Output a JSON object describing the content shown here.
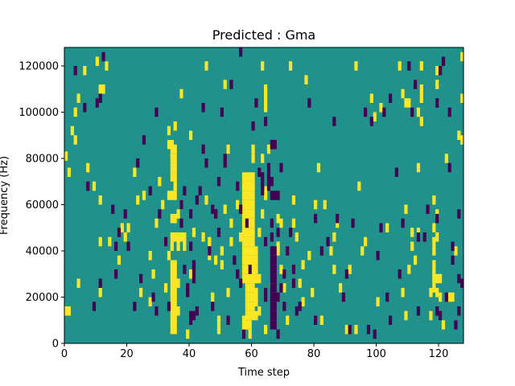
{
  "chart_data": {
    "type": "heatmap",
    "title": "Predicted : Gma",
    "xlabel": "Time step",
    "ylabel": "Frequency (Hz)",
    "xlim": [
      0,
      128
    ],
    "ylim": [
      0,
      128000
    ],
    "x_ticks": [
      0,
      20,
      40,
      60,
      80,
      100,
      120
    ],
    "y_ticks": [
      0,
      20000,
      40000,
      60000,
      80000,
      100000,
      120000
    ],
    "background_value": 0,
    "colors": {
      "background": "#21918c",
      "high": "#fde725",
      "low": "#440154"
    },
    "high_cells": [
      [
        0,
        81000
      ],
      [
        0,
        14000
      ],
      [
        1,
        14000
      ],
      [
        1,
        74000
      ],
      [
        2,
        92000
      ],
      [
        3,
        88000
      ],
      [
        3,
        100000
      ],
      [
        4,
        106000
      ],
      [
        4,
        26000
      ],
      [
        6,
        118000
      ],
      [
        7,
        76000
      ],
      [
        9,
        68000
      ],
      [
        10,
        122000
      ],
      [
        11,
        110000
      ],
      [
        11,
        62000
      ],
      [
        11,
        44000
      ],
      [
        11,
        22000
      ],
      [
        12,
        110000
      ],
      [
        13,
        120000
      ],
      [
        14,
        44000
      ],
      [
        17,
        36000
      ],
      [
        18,
        50000
      ],
      [
        19,
        46000
      ],
      [
        20,
        50000
      ],
      [
        22,
        74000
      ],
      [
        23,
        62000
      ],
      [
        24,
        22000
      ],
      [
        25,
        64000
      ],
      [
        27,
        18000
      ],
      [
        27,
        38000
      ],
      [
        28,
        30000
      ],
      [
        29,
        52000
      ],
      [
        30,
        70000
      ],
      [
        31,
        60000
      ],
      [
        32,
        24000
      ],
      [
        33,
        38000
      ],
      [
        33,
        64000
      ],
      [
        33,
        86000
      ],
      [
        33,
        92000
      ],
      [
        34,
        6000
      ],
      [
        34,
        10000
      ],
      [
        34,
        14000
      ],
      [
        34,
        18000
      ],
      [
        34,
        22000
      ],
      [
        34,
        26000
      ],
      [
        34,
        30000
      ],
      [
        34,
        34000
      ],
      [
        34,
        42000
      ],
      [
        34,
        46000
      ],
      [
        34,
        54000
      ],
      [
        34,
        64000
      ],
      [
        34,
        72000
      ],
      [
        34,
        76000
      ],
      [
        34,
        80000
      ],
      [
        34,
        82000
      ],
      [
        34,
        86000
      ],
      [
        35,
        6000
      ],
      [
        35,
        10000
      ],
      [
        35,
        14000
      ],
      [
        35,
        18000
      ],
      [
        35,
        22000
      ],
      [
        35,
        26000
      ],
      [
        35,
        30000
      ],
      [
        35,
        34000
      ],
      [
        35,
        46000
      ],
      [
        35,
        54000
      ],
      [
        35,
        64000
      ],
      [
        35,
        68000
      ],
      [
        35,
        72000
      ],
      [
        35,
        76000
      ],
      [
        35,
        80000
      ],
      [
        35,
        84000
      ],
      [
        35,
        94000
      ],
      [
        36,
        14000
      ],
      [
        36,
        26000
      ],
      [
        36,
        42000
      ],
      [
        36,
        46000
      ],
      [
        36,
        56000
      ],
      [
        37,
        46000
      ],
      [
        37,
        60000
      ],
      [
        37,
        108000
      ],
      [
        38,
        46000
      ],
      [
        38,
        42000
      ],
      [
        39,
        4000
      ],
      [
        40,
        30000
      ],
      [
        40,
        90000
      ],
      [
        41,
        48000
      ],
      [
        44,
        46000
      ],
      [
        45,
        62000
      ],
      [
        45,
        120000
      ],
      [
        46,
        44000
      ],
      [
        46,
        38000
      ],
      [
        47,
        20000
      ],
      [
        48,
        36000
      ],
      [
        49,
        10000
      ],
      [
        49,
        6000
      ],
      [
        50,
        40000
      ],
      [
        50,
        34000
      ],
      [
        51,
        58000
      ],
      [
        51,
        112000
      ],
      [
        52,
        22000
      ],
      [
        52,
        84000
      ],
      [
        53,
        52000
      ],
      [
        53,
        44000
      ],
      [
        55,
        60000
      ],
      [
        56,
        46000
      ],
      [
        57,
        72000
      ],
      [
        57,
        68000
      ],
      [
        57,
        64000
      ],
      [
        57,
        60000
      ],
      [
        57,
        56000
      ],
      [
        57,
        52000
      ],
      [
        57,
        48000
      ],
      [
        57,
        44000
      ],
      [
        57,
        40000
      ],
      [
        57,
        36000
      ],
      [
        57,
        32000
      ],
      [
        57,
        28000
      ],
      [
        57,
        10000
      ],
      [
        57,
        6000
      ],
      [
        58,
        72000
      ],
      [
        58,
        68000
      ],
      [
        58,
        64000
      ],
      [
        58,
        60000
      ],
      [
        58,
        56000
      ],
      [
        58,
        52000
      ],
      [
        58,
        48000
      ],
      [
        58,
        44000
      ],
      [
        58,
        40000
      ],
      [
        58,
        36000
      ],
      [
        58,
        32000
      ],
      [
        58,
        28000
      ],
      [
        58,
        24000
      ],
      [
        58,
        20000
      ],
      [
        58,
        16000
      ],
      [
        58,
        12000
      ],
      [
        58,
        8000
      ],
      [
        59,
        72000
      ],
      [
        59,
        68000
      ],
      [
        59,
        64000
      ],
      [
        59,
        60000
      ],
      [
        59,
        56000
      ],
      [
        59,
        52000
      ],
      [
        59,
        48000
      ],
      [
        59,
        44000
      ],
      [
        59,
        40000
      ],
      [
        59,
        36000
      ],
      [
        59,
        32000
      ],
      [
        59,
        28000
      ],
      [
        59,
        24000
      ],
      [
        59,
        20000
      ],
      [
        59,
        16000
      ],
      [
        59,
        12000
      ],
      [
        59,
        8000
      ],
      [
        59,
        4000
      ],
      [
        60,
        72000
      ],
      [
        60,
        68000
      ],
      [
        60,
        64000
      ],
      [
        60,
        60000
      ],
      [
        60,
        56000
      ],
      [
        60,
        52000
      ],
      [
        60,
        48000
      ],
      [
        60,
        44000
      ],
      [
        60,
        40000
      ],
      [
        60,
        36000
      ],
      [
        60,
        32000
      ],
      [
        60,
        28000
      ],
      [
        60,
        24000
      ],
      [
        60,
        20000
      ],
      [
        60,
        16000
      ],
      [
        60,
        12000
      ],
      [
        60,
        80000
      ],
      [
        60,
        84000
      ],
      [
        61,
        40000
      ],
      [
        61,
        36000
      ],
      [
        61,
        32000
      ],
      [
        61,
        28000
      ],
      [
        61,
        22000
      ],
      [
        61,
        18000
      ],
      [
        61,
        12000
      ],
      [
        62,
        48000
      ],
      [
        62,
        28000
      ],
      [
        62,
        14000
      ],
      [
        63,
        56000
      ],
      [
        63,
        80000
      ],
      [
        63,
        120000
      ],
      [
        64,
        110000
      ],
      [
        64,
        106000
      ],
      [
        64,
        102000
      ],
      [
        64,
        66000
      ],
      [
        64,
        64000
      ],
      [
        64,
        6000
      ],
      [
        65,
        84000
      ],
      [
        66,
        26000
      ],
      [
        68,
        54000
      ],
      [
        68,
        42000
      ],
      [
        68,
        40000
      ],
      [
        69,
        52000
      ],
      [
        69,
        32000
      ],
      [
        70,
        24000
      ],
      [
        71,
        10000
      ],
      [
        72,
        120000
      ],
      [
        73,
        62000
      ],
      [
        73,
        52000
      ],
      [
        74,
        46000
      ],
      [
        75,
        26000
      ],
      [
        76,
        34000
      ],
      [
        76,
        18000
      ],
      [
        77,
        114000
      ],
      [
        78,
        38000
      ],
      [
        79,
        22000
      ],
      [
        80,
        60000
      ],
      [
        81,
        76000
      ],
      [
        82,
        10000
      ],
      [
        83,
        60000
      ],
      [
        85,
        40000
      ],
      [
        86,
        46000
      ],
      [
        86,
        32000
      ],
      [
        87,
        52000
      ],
      [
        88,
        24000
      ],
      [
        90,
        6000
      ],
      [
        91,
        32000
      ],
      [
        93,
        6000
      ],
      [
        93,
        120000
      ],
      [
        94,
        68000
      ],
      [
        95,
        40000
      ],
      [
        96,
        44000
      ],
      [
        98,
        106000
      ],
      [
        99,
        98000
      ],
      [
        100,
        18000
      ],
      [
        101,
        102000
      ],
      [
        103,
        50000
      ],
      [
        107,
        120000
      ],
      [
        108,
        22000
      ],
      [
        108,
        108000
      ],
      [
        109,
        12000
      ],
      [
        109,
        58000
      ],
      [
        109,
        104000
      ],
      [
        110,
        32000
      ],
      [
        110,
        104000
      ],
      [
        111,
        48000
      ],
      [
        111,
        42000
      ],
      [
        112,
        36000
      ],
      [
        113,
        48000
      ],
      [
        113,
        76000
      ],
      [
        113,
        100000
      ],
      [
        114,
        110000
      ],
      [
        114,
        120000
      ],
      [
        114,
        106000
      ],
      [
        114,
        96000
      ],
      [
        117,
        22000
      ],
      [
        117,
        12000
      ],
      [
        118,
        62000
      ],
      [
        118,
        50000
      ],
      [
        118,
        44000
      ],
      [
        118,
        40000
      ],
      [
        118,
        34000
      ],
      [
        118,
        30000
      ],
      [
        118,
        28000
      ],
      [
        118,
        24000
      ],
      [
        119,
        46000
      ],
      [
        119,
        28000
      ],
      [
        119,
        22000
      ],
      [
        119,
        56000
      ],
      [
        119,
        112000
      ],
      [
        119,
        118000
      ],
      [
        120,
        28000
      ],
      [
        120,
        20000
      ],
      [
        121,
        8000
      ],
      [
        122,
        80000
      ],
      [
        123,
        20000
      ],
      [
        124,
        20000
      ],
      [
        125,
        40000
      ],
      [
        126,
        90000
      ],
      [
        127,
        124000
      ],
      [
        127,
        106000
      ],
      [
        127,
        88000
      ]
    ],
    "low_cells": [
      [
        3,
        118000
      ],
      [
        6,
        102000
      ],
      [
        7,
        68000
      ],
      [
        9,
        16000
      ],
      [
        10,
        104000
      ],
      [
        11,
        106000
      ],
      [
        11,
        26000
      ],
      [
        12,
        124000
      ],
      [
        15,
        58000
      ],
      [
        16,
        30000
      ],
      [
        16,
        42000
      ],
      [
        17,
        48000
      ],
      [
        19,
        56000
      ],
      [
        20,
        42000
      ],
      [
        22,
        16000
      ],
      [
        23,
        78000
      ],
      [
        24,
        28000
      ],
      [
        25,
        88000
      ],
      [
        27,
        66000
      ],
      [
        28,
        20000
      ],
      [
        29,
        100000
      ],
      [
        29,
        14000
      ],
      [
        30,
        56000
      ],
      [
        32,
        44000
      ],
      [
        33,
        16000
      ],
      [
        37,
        60000
      ],
      [
        37,
        52000
      ],
      [
        38,
        32000
      ],
      [
        38,
        66000
      ],
      [
        39,
        22000
      ],
      [
        39,
        24000
      ],
      [
        40,
        10000
      ],
      [
        40,
        12000
      ],
      [
        40,
        42000
      ],
      [
        40,
        56000
      ],
      [
        41,
        12000
      ],
      [
        41,
        28000
      ],
      [
        41,
        32000
      ],
      [
        41,
        34000
      ],
      [
        42,
        14000
      ],
      [
        42,
        62000
      ],
      [
        43,
        66000
      ],
      [
        44,
        84000
      ],
      [
        44,
        102000
      ],
      [
        45,
        78000
      ],
      [
        46,
        40000
      ],
      [
        47,
        16000
      ],
      [
        47,
        58000
      ],
      [
        48,
        56000
      ],
      [
        48,
        56000
      ],
      [
        49,
        48000
      ],
      [
        49,
        70000
      ],
      [
        50,
        100000
      ],
      [
        51,
        80000
      ],
      [
        51,
        78000
      ],
      [
        52,
        10000
      ],
      [
        53,
        112000
      ],
      [
        54,
        36000
      ],
      [
        55,
        68000
      ],
      [
        55,
        30000
      ],
      [
        56,
        58000
      ],
      [
        56,
        26000
      ],
      [
        56,
        126000
      ],
      [
        57,
        4000
      ],
      [
        58,
        52000
      ],
      [
        59,
        32000
      ],
      [
        60,
        94000
      ],
      [
        61,
        104000
      ],
      [
        62,
        74000
      ],
      [
        63,
        72000
      ],
      [
        63,
        68000
      ],
      [
        63,
        66000
      ],
      [
        64,
        96000
      ],
      [
        64,
        44000
      ],
      [
        64,
        22000
      ],
      [
        64,
        20000
      ],
      [
        65,
        76000
      ],
      [
        65,
        72000
      ],
      [
        65,
        68000
      ],
      [
        66,
        70000
      ],
      [
        66,
        64000
      ],
      [
        66,
        52000
      ],
      [
        66,
        46000
      ],
      [
        66,
        40000
      ],
      [
        66,
        36000
      ],
      [
        66,
        32000
      ],
      [
        66,
        28000
      ],
      [
        66,
        24000
      ],
      [
        66,
        20000
      ],
      [
        66,
        16000
      ],
      [
        66,
        12000
      ],
      [
        66,
        8000
      ],
      [
        66,
        86000
      ],
      [
        67,
        86000
      ],
      [
        67,
        64000
      ],
      [
        67,
        40000
      ],
      [
        67,
        36000
      ],
      [
        67,
        32000
      ],
      [
        67,
        28000
      ],
      [
        67,
        24000
      ],
      [
        67,
        20000
      ],
      [
        67,
        16000
      ],
      [
        67,
        12000
      ],
      [
        67,
        8000
      ],
      [
        68,
        64000
      ],
      [
        68,
        48000
      ],
      [
        68,
        20000
      ],
      [
        68,
        4000
      ],
      [
        69,
        76000
      ],
      [
        69,
        24000
      ],
      [
        70,
        30000
      ],
      [
        70,
        16000
      ],
      [
        71,
        40000
      ],
      [
        72,
        48000
      ],
      [
        73,
        26000
      ],
      [
        73,
        32000
      ],
      [
        74,
        14000
      ],
      [
        75,
        16000
      ],
      [
        78,
        104000
      ],
      [
        80,
        54000
      ],
      [
        80,
        10000
      ],
      [
        82,
        40000
      ],
      [
        84,
        44000
      ],
      [
        86,
        96000
      ],
      [
        87,
        54000
      ],
      [
        89,
        20000
      ],
      [
        90,
        30000
      ],
      [
        91,
        6000
      ],
      [
        92,
        52000
      ],
      [
        96,
        100000
      ],
      [
        97,
        6000
      ],
      [
        98,
        96000
      ],
      [
        99,
        4000
      ],
      [
        100,
        38000
      ],
      [
        101,
        50000
      ],
      [
        102,
        100000
      ],
      [
        103,
        20000
      ],
      [
        104,
        106000
      ],
      [
        104,
        10000
      ],
      [
        106,
        74000
      ],
      [
        107,
        30000
      ],
      [
        108,
        52000
      ],
      [
        110,
        120000
      ],
      [
        111,
        100000
      ],
      [
        112,
        112000
      ],
      [
        113,
        14000
      ],
      [
        113,
        46000
      ],
      [
        115,
        46000
      ],
      [
        116,
        58000
      ],
      [
        119,
        104000
      ],
      [
        119,
        54000
      ],
      [
        119,
        14000
      ],
      [
        120,
        118000
      ],
      [
        120,
        12000
      ],
      [
        121,
        122000
      ],
      [
        122,
        20000
      ],
      [
        123,
        100000
      ],
      [
        123,
        76000
      ],
      [
        124,
        42000
      ],
      [
        124,
        36000
      ],
      [
        125,
        8000
      ],
      [
        126,
        56000
      ],
      [
        126,
        28000
      ],
      [
        126,
        14000
      ],
      [
        127,
        26000
      ]
    ]
  }
}
